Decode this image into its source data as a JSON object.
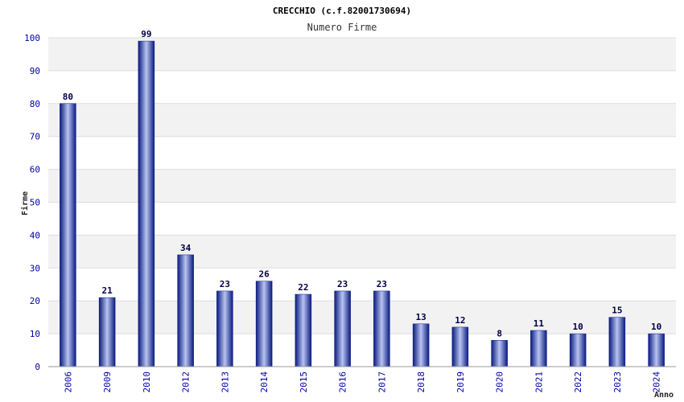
{
  "chart_data": {
    "type": "bar",
    "title": "CRECCHIO (c.f.82001730694)",
    "subtitle": "Numero Firme",
    "xlabel": "Anno",
    "ylabel": "Firme",
    "categories": [
      "2006",
      "2009",
      "2010",
      "2012",
      "2013",
      "2014",
      "2015",
      "2016",
      "2017",
      "2018",
      "2019",
      "2020",
      "2021",
      "2022",
      "2023",
      "2024"
    ],
    "values": [
      80,
      21,
      99,
      34,
      23,
      26,
      22,
      23,
      23,
      13,
      12,
      8,
      11,
      10,
      15,
      10
    ],
    "ylim": [
      0,
      100
    ],
    "yticks": [
      0,
      10,
      20,
      30,
      40,
      50,
      60,
      70,
      80,
      90,
      100
    ],
    "grid": true,
    "legend": "none",
    "colors": {
      "bar_dark": "#0a1a80",
      "bar_light": "#b8c4f0",
      "band_alt": "#f2f2f2",
      "tick_text": "#0000a0"
    }
  }
}
